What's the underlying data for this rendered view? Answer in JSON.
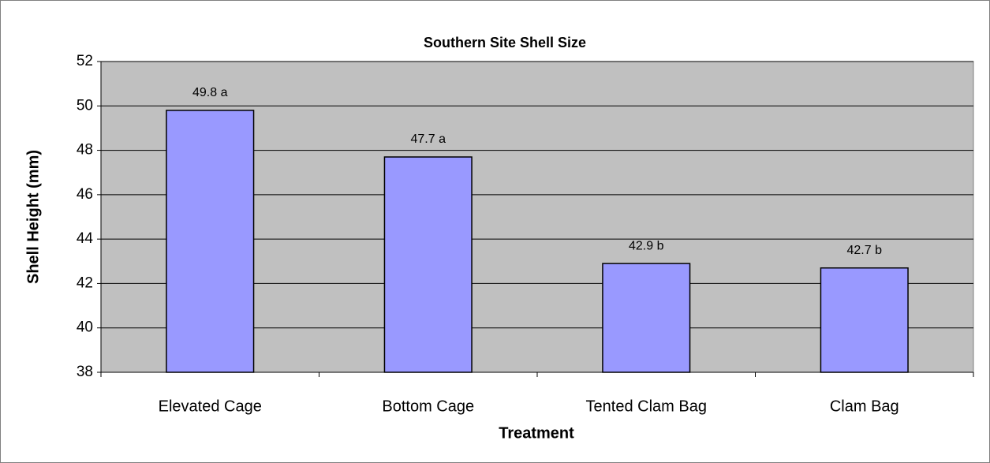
{
  "chart_data": {
    "type": "bar",
    "title": "Southern Site Shell Size",
    "x_label": "Treatment",
    "y_label": "Shell Height (mm)",
    "categories": [
      "Elevated Cage",
      "Bottom Cage",
      "Tented Clam Bag",
      "Clam Bag"
    ],
    "values": [
      49.8,
      47.7,
      42.9,
      42.7
    ],
    "value_labels": [
      "49.8 a",
      "47.7 a",
      "42.9 b",
      "42.7 b"
    ],
    "color": "#9999ff",
    "ylim": [
      38,
      52
    ],
    "yticks": [
      38,
      40,
      42,
      44,
      46,
      48,
      50,
      52
    ],
    "grid": true
  }
}
